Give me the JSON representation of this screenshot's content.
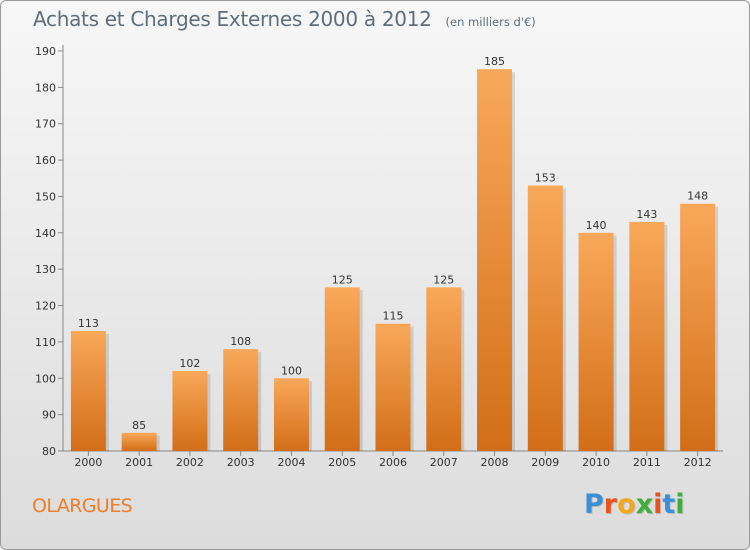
{
  "title": "Achats et Charges Externes 2000 à 2012",
  "subtitle": "(en milliers d'€)",
  "location": "OLARGUES",
  "logo_text": "Proxiti",
  "colors": {
    "bar_light": "#f9a85a",
    "bar_dark": "#d26e17",
    "title": "#5f6e7a",
    "location": "#f07d2a",
    "logo_letters": [
      "#3a8fd6",
      "#e9541e",
      "#f2a81d",
      "#3fae3a",
      "#e9541e",
      "#3a8fd6",
      "#3fae3a"
    ]
  },
  "chart_data": {
    "type": "bar",
    "title": "Achats et Charges Externes 2000 à 2012",
    "subtitle": "(en milliers d'€)",
    "categories": [
      "2000",
      "2001",
      "2002",
      "2003",
      "2004",
      "2005",
      "2006",
      "2007",
      "2008",
      "2009",
      "2010",
      "2011",
      "2012"
    ],
    "values": [
      113,
      85,
      102,
      108,
      100,
      125,
      115,
      125,
      185,
      153,
      140,
      143,
      148
    ],
    "ylim": [
      80,
      190
    ],
    "yticks": [
      80,
      90,
      100,
      110,
      120,
      130,
      140,
      150,
      160,
      170,
      180,
      190
    ],
    "xlabel": "",
    "ylabel": "",
    "grid": false,
    "legend": "none"
  }
}
